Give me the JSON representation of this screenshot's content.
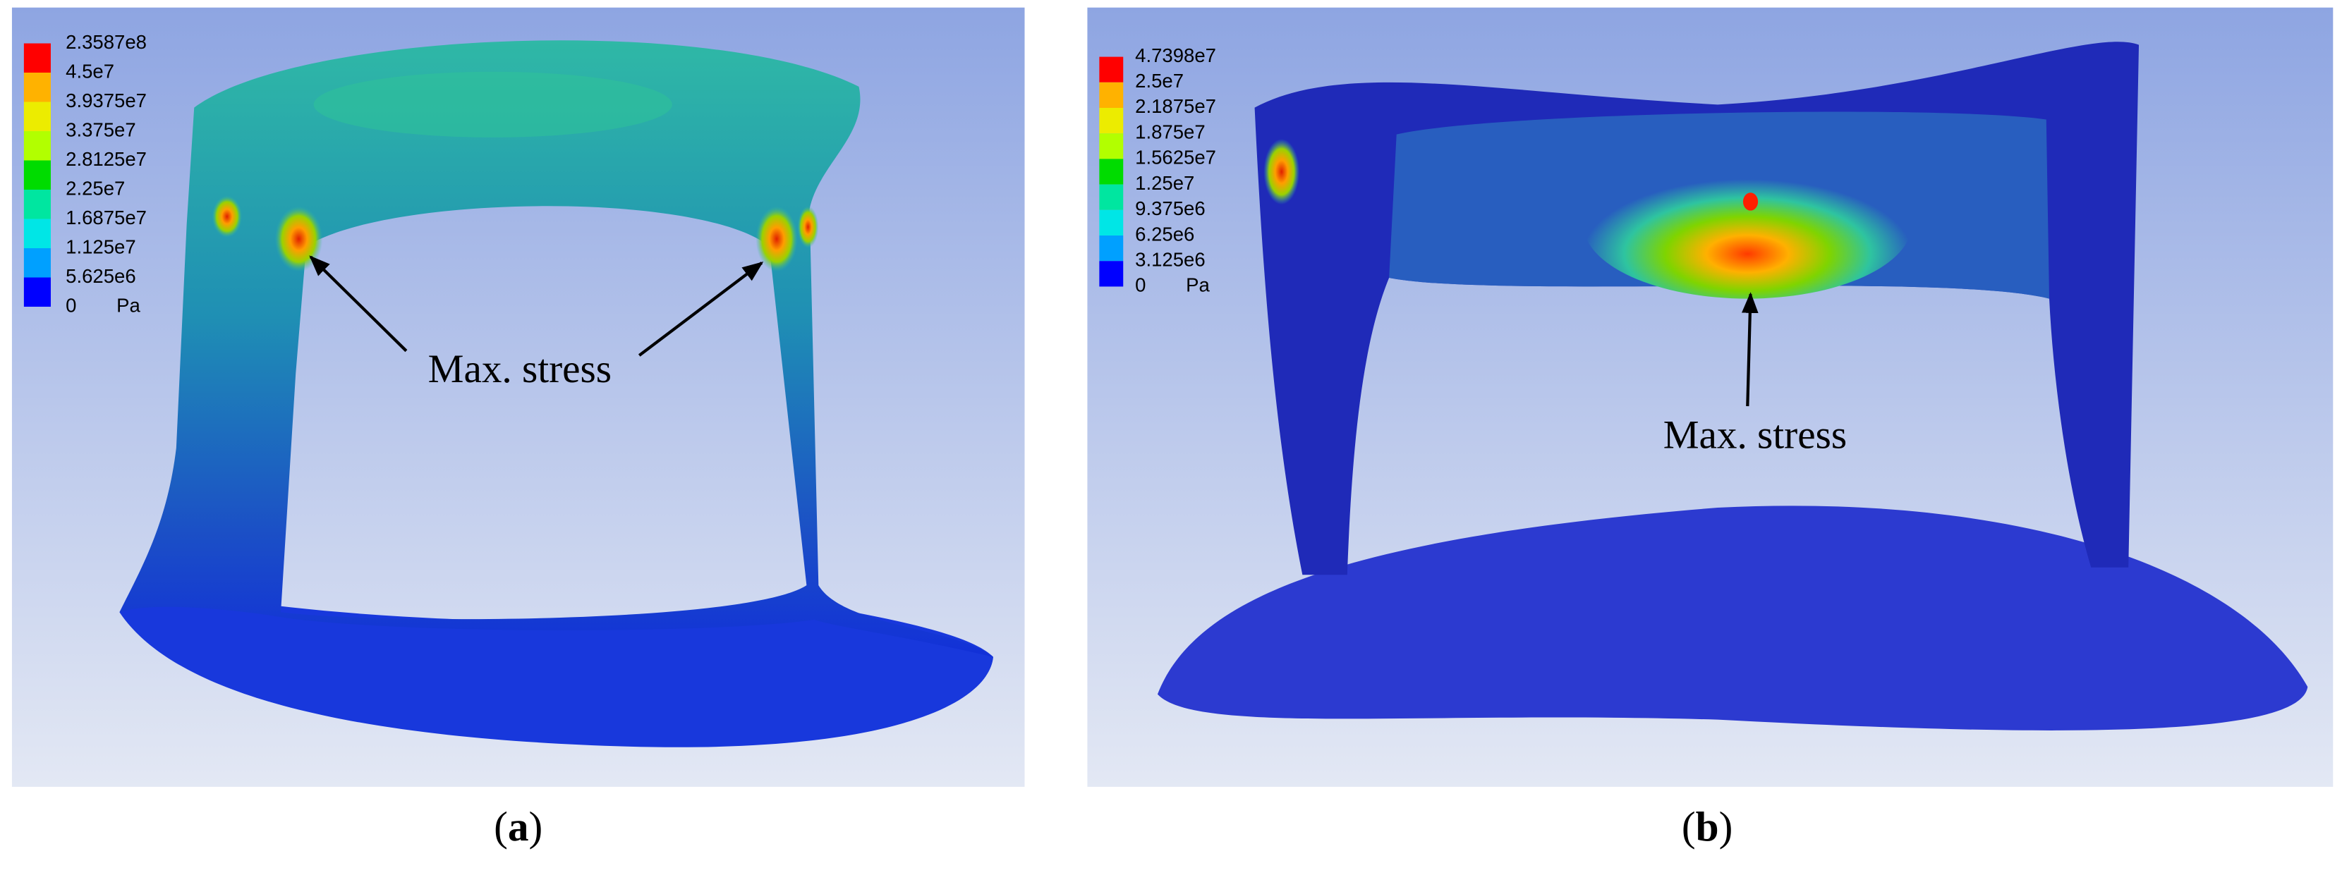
{
  "panels": [
    {
      "legend": {
        "values": [
          "2.3587e8",
          "4.5e7",
          "3.9375e7",
          "3.375e7",
          "2.8125e7",
          "2.25e7",
          "1.6875e7",
          "1.125e7",
          "5.625e6",
          "0"
        ],
        "unit": "Pa"
      },
      "annotation": "Max. stress",
      "caption": [
        "(",
        "a",
        ")"
      ]
    },
    {
      "legend": {
        "values": [
          "4.7398e7",
          "2.5e7",
          "2.1875e7",
          "1.875e7",
          "1.5625e7",
          "1.25e7",
          "9.375e6",
          "6.25e6",
          "3.125e6",
          "0"
        ],
        "unit": "Pa"
      },
      "annotation": "Max. stress",
      "caption": [
        "(",
        "b",
        ")"
      ]
    }
  ]
}
